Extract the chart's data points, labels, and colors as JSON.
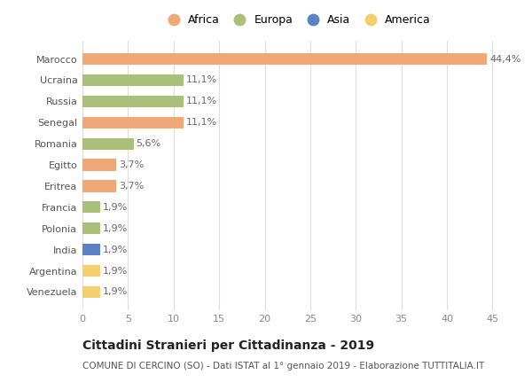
{
  "categories": [
    "Venezuela",
    "Argentina",
    "India",
    "Polonia",
    "Francia",
    "Eritrea",
    "Egitto",
    "Romania",
    "Senegal",
    "Russia",
    "Ucraina",
    "Marocco"
  ],
  "values": [
    1.9,
    1.9,
    1.9,
    1.9,
    1.9,
    3.7,
    3.7,
    5.6,
    11.1,
    11.1,
    11.1,
    44.4
  ],
  "labels": [
    "1,9%",
    "1,9%",
    "1,9%",
    "1,9%",
    "1,9%",
    "3,7%",
    "3,7%",
    "5,6%",
    "11,1%",
    "11,1%",
    "11,1%",
    "44,4%"
  ],
  "colors": [
    "#F5CE6E",
    "#F5CE6E",
    "#5B82C4",
    "#A8C07A",
    "#A8C07A",
    "#F0A878",
    "#F0A878",
    "#A8C07A",
    "#F0A878",
    "#A8C07A",
    "#A8C07A",
    "#F0A878"
  ],
  "legend": [
    {
      "label": "Africa",
      "color": "#F0A878"
    },
    {
      "label": "Europa",
      "color": "#A8C07A"
    },
    {
      "label": "Asia",
      "color": "#5B82C4"
    },
    {
      "label": "America",
      "color": "#F5CE6E"
    }
  ],
  "xlim": [
    0,
    47
  ],
  "xticks": [
    0,
    5,
    10,
    15,
    20,
    25,
    30,
    35,
    40,
    45
  ],
  "title_main": "Cittadini Stranieri per Cittadinanza - 2019",
  "title_sub": "COMUNE DI CERCINO (SO) - Dati ISTAT al 1° gennaio 2019 - Elaborazione TUTTITALIA.IT",
  "bg_color": "#FFFFFF",
  "bar_height": 0.55,
  "label_fontsize": 8,
  "tick_fontsize": 8,
  "ylabel_fontsize": 8,
  "legend_fontsize": 9
}
